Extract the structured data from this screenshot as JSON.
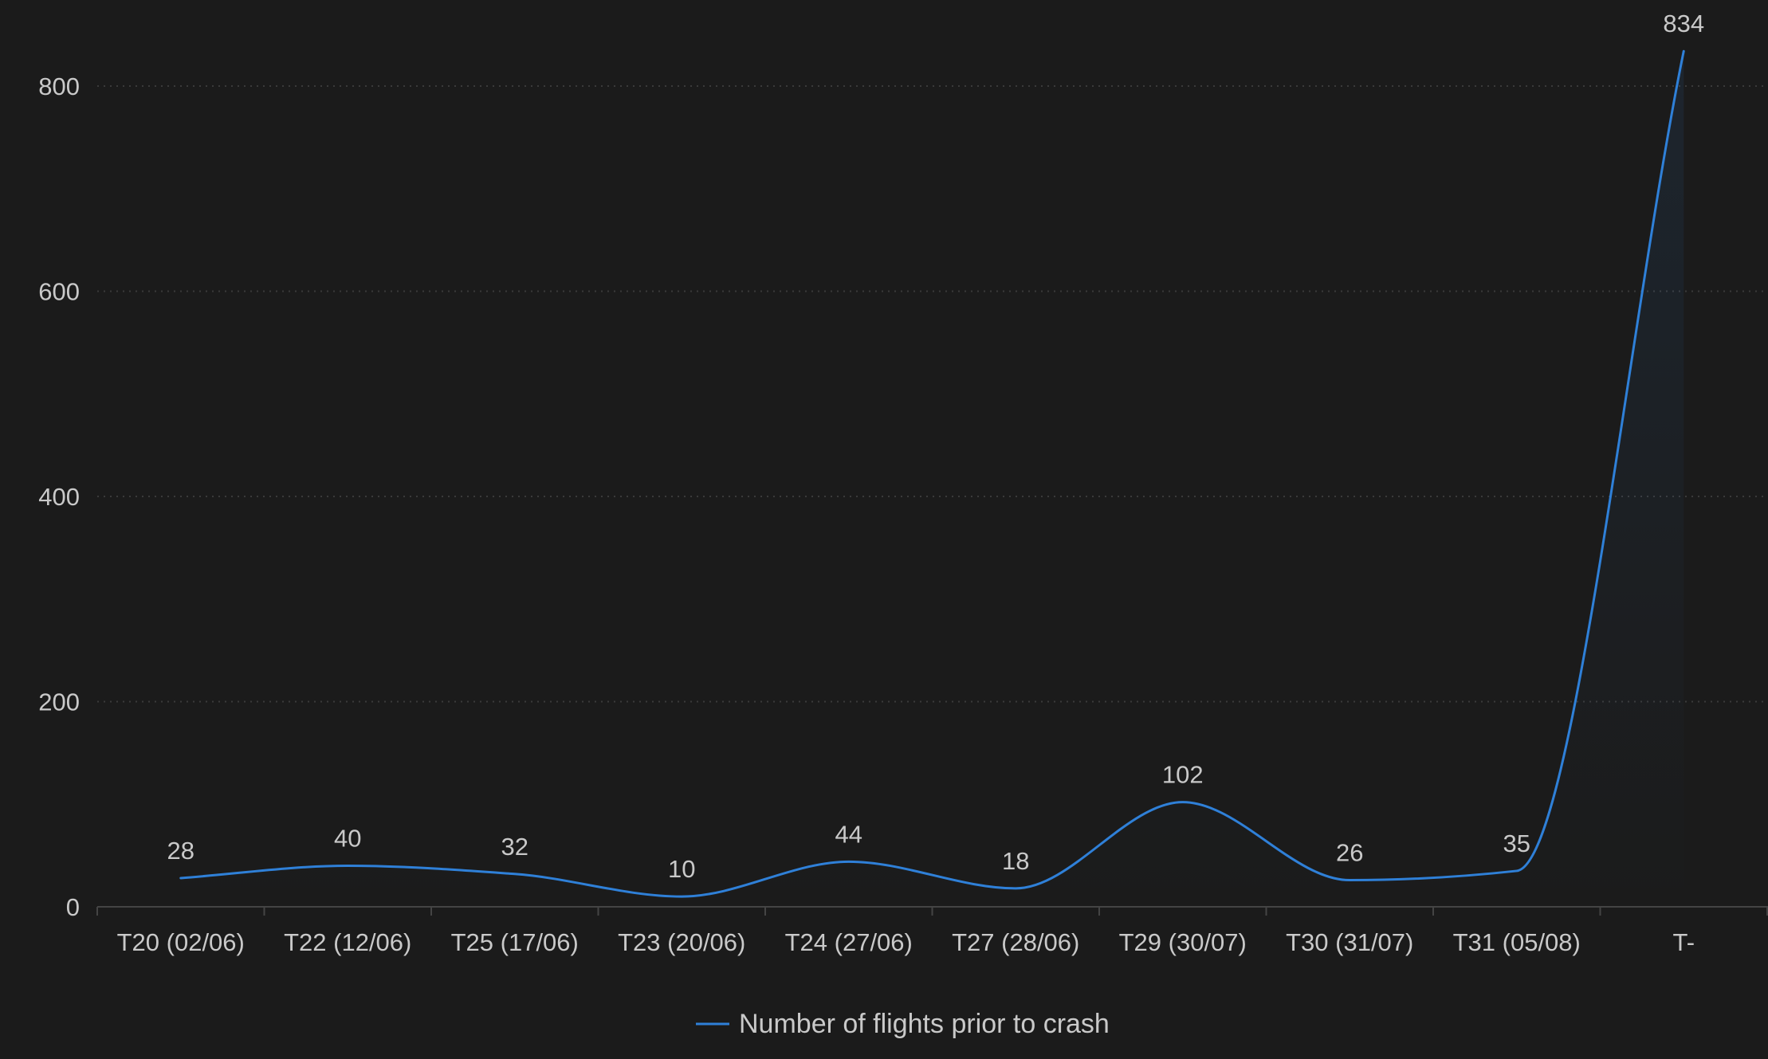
{
  "chart_data": {
    "type": "line",
    "title": "",
    "xlabel": "",
    "ylabel": "",
    "categories": [
      "T20 (02/06)",
      "T22 (12/06)",
      "T25 (17/06)",
      "T23 (20/06)",
      "T24 (27/06)",
      "T27 (28/06)",
      "T29 (30/07)",
      "T30 (31/07)",
      "T31 (05/08)",
      "T-"
    ],
    "series": [
      {
        "name": "Number of flights prior to crash",
        "values": [
          28,
          40,
          32,
          10,
          44,
          18,
          102,
          26,
          35,
          834
        ],
        "color": "#2f80d8"
      }
    ],
    "ylim": [
      0,
      834
    ],
    "yticks": [
      0,
      200,
      400,
      600,
      800
    ],
    "grid": true,
    "smooth": true,
    "legend_position": "bottom-center",
    "data_labels": true
  }
}
